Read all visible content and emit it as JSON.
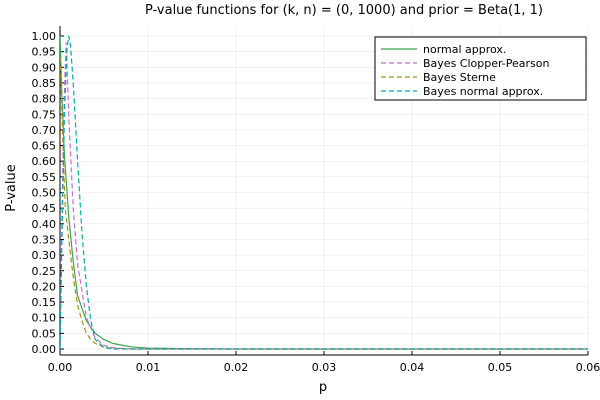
{
  "chart_data": {
    "type": "line",
    "title": "P-value functions for (k, n) = (0, 1000) and prior = Beta(1, 1)",
    "xlabel": "p",
    "ylabel": "P-value",
    "xlim": [
      0,
      0.06
    ],
    "ylim": [
      0,
      1
    ],
    "grid": true,
    "legend_position": "top-right",
    "x_ticks": [
      0,
      0.01,
      0.02,
      0.03,
      0.04,
      0.05,
      0.06
    ],
    "x_tick_labels": [
      "0.00",
      "0.01",
      "0.02",
      "0.03",
      "0.04",
      "0.05",
      "0.06"
    ],
    "y_ticks": [
      0,
      0.05,
      0.1,
      0.15,
      0.2,
      0.25,
      0.3,
      0.35,
      0.4,
      0.45,
      0.5,
      0.55,
      0.6,
      0.65,
      0.7,
      0.75,
      0.8,
      0.85,
      0.9,
      0.95,
      1.0
    ],
    "y_tick_labels": [
      "0.00",
      "0.05",
      "0.10",
      "0.15",
      "0.20",
      "0.25",
      "0.30",
      "0.35",
      "0.40",
      "0.45",
      "0.50",
      "0.55",
      "0.60",
      "0.65",
      "0.70",
      "0.75",
      "0.80",
      "0.85",
      "0.90",
      "0.95",
      "1.00"
    ],
    "series": [
      {
        "name": "normal approx.",
        "color": "#009af9",
        "style": "solid",
        "color_override": "#3da44d",
        "x": [
          0,
          0.0002,
          0.0005,
          0.001,
          0.0015,
          0.002,
          0.003,
          0.004,
          0.005,
          0.006,
          0.008,
          0.01,
          0.015,
          0.02,
          0.03,
          0.04,
          0.05,
          0.06
        ],
        "y": [
          1.0,
          0.82,
          0.62,
          0.42,
          0.28,
          0.17,
          0.09,
          0.05,
          0.03,
          0.018,
          0.007,
          0.003,
          0.001,
          0.0,
          0.0,
          0.0,
          0.0,
          0.0
        ]
      },
      {
        "name": "Bayes Clopper-Pearson",
        "color": "#c271d2",
        "style": "dashed",
        "x": [
          0,
          0.0001,
          0.0003,
          0.0005,
          0.0007,
          0.001,
          0.0015,
          0.002,
          0.003,
          0.004,
          0.005,
          0.006,
          0.008,
          0.01,
          0.02,
          0.03,
          0.04,
          0.05,
          0.06
        ],
        "y": [
          0.0,
          0.2,
          0.55,
          0.82,
          0.98,
          0.74,
          0.45,
          0.27,
          0.1,
          0.035,
          0.012,
          0.004,
          0.0,
          0.0,
          0.0,
          0.0,
          0.0,
          0.0,
          0.0
        ]
      },
      {
        "name": "Bayes Sterne",
        "color": "#ac8d18",
        "style": "dashed",
        "x": [
          0,
          0.0002,
          0.0004,
          0.0006,
          0.001,
          0.0015,
          0.002,
          0.0025,
          0.003,
          0.0035,
          0.004,
          0.005,
          0.006,
          0.008,
          0.01,
          0.02,
          0.03,
          0.04,
          0.05,
          0.06
        ],
        "y": [
          0.93,
          0.78,
          0.6,
          0.45,
          0.35,
          0.23,
          0.14,
          0.09,
          0.05,
          0.03,
          0.018,
          0.006,
          0.002,
          0.0,
          0.0,
          0.0,
          0.0,
          0.0,
          0.0,
          0.0
        ]
      },
      {
        "name": "Bayes normal approx.",
        "color": "#00a9ad",
        "style": "dashed",
        "x": [
          0,
          0.0002,
          0.0005,
          0.0008,
          0.001,
          0.0012,
          0.0015,
          0.002,
          0.0025,
          0.003,
          0.0035,
          0.004,
          0.005,
          0.006,
          0.008,
          0.01,
          0.02,
          0.03,
          0.04,
          0.05,
          0.06
        ],
        "y": [
          0.0,
          0.32,
          0.75,
          0.96,
          1.0,
          0.97,
          0.85,
          0.6,
          0.37,
          0.2,
          0.09,
          0.03,
          0.005,
          0.0,
          0.0,
          0.0,
          0.0,
          0.0,
          0.0,
          0.0,
          0.0
        ]
      }
    ]
  }
}
